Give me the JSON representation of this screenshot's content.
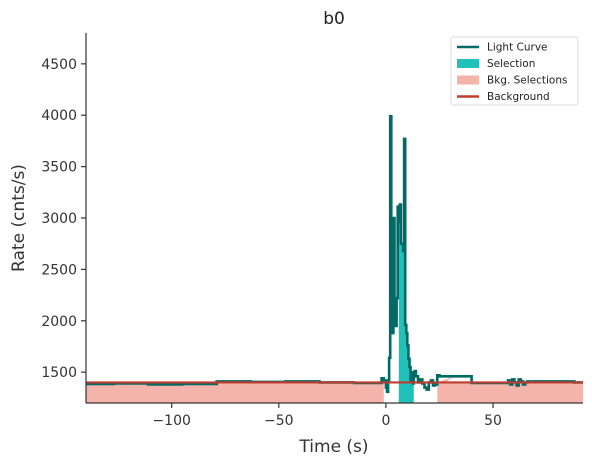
{
  "chart_data": {
    "type": "line",
    "title": "b0",
    "xlabel": "Time (s)",
    "ylabel": "Rate (cnts/s)",
    "xlim": [
      -140,
      92
    ],
    "ylim": [
      1200,
      4800
    ],
    "xticks": [
      -100,
      -50,
      0,
      50
    ],
    "xtick_labels": [
      "−100",
      "−50",
      "0",
      "50"
    ],
    "yticks": [
      1500,
      2000,
      2500,
      3000,
      3500,
      4000,
      4500
    ],
    "ytick_labels": [
      "1500",
      "2000",
      "2500",
      "3000",
      "3500",
      "4000",
      "4500"
    ],
    "grid": false,
    "legend": {
      "placement": "top-right",
      "entries": [
        {
          "label": "Light Curve",
          "kind": "line",
          "color": "#006a66"
        },
        {
          "label": "Selection",
          "kind": "patch",
          "color": "#20c1b8"
        },
        {
          "label": "Bkg. Selections",
          "kind": "patch",
          "color": "#f4b3ab"
        },
        {
          "label": "Background",
          "kind": "line",
          "color": "#c13c2e"
        }
      ]
    },
    "light_curve": {
      "name": "Light Curve",
      "color": "#006a66",
      "x": [
        -140,
        -128,
        -127,
        -112,
        -111,
        -96,
        -95,
        -80,
        -79,
        -64,
        -63,
        -48,
        -47,
        -32,
        -31,
        -16,
        -15,
        -3,
        -2,
        -1,
        0,
        0.5,
        1,
        1.5,
        2,
        2.5,
        3,
        3.5,
        4,
        4.5,
        5,
        5.5,
        6,
        6.5,
        7,
        7.5,
        8,
        8.5,
        9,
        9.5,
        10,
        10.5,
        11,
        11.5,
        12,
        12.5,
        13,
        13.5,
        14,
        15,
        16,
        17,
        18,
        19,
        20,
        21,
        22,
        23,
        24,
        25,
        40,
        56,
        57,
        58,
        59,
        60,
        61,
        62,
        63,
        64,
        65,
        66,
        72,
        88,
        92
      ],
      "y": [
        1385,
        1385,
        1390,
        1390,
        1380,
        1380,
        1385,
        1385,
        1410,
        1410,
        1405,
        1405,
        1410,
        1410,
        1400,
        1400,
        1395,
        1395,
        1440,
        1420,
        1350,
        1310,
        1420,
        1640,
        3990,
        2160,
        1880,
        3000,
        2140,
        1950,
        2220,
        3110,
        2960,
        3130,
        2750,
        2750,
        2680,
        3770,
        1960,
        1880,
        1760,
        1630,
        1550,
        1410,
        1500,
        1390,
        1460,
        1510,
        1460,
        1400,
        1430,
        1390,
        1350,
        1330,
        1400,
        1420,
        1370,
        1380,
        1470,
        1460,
        1395,
        1395,
        1420,
        1380,
        1430,
        1400,
        1370,
        1430,
        1410,
        1380,
        1400,
        1410,
        1410,
        1400,
        1400
      ]
    },
    "selection": {
      "name": "Selection",
      "color": "#20c1b8",
      "range": [
        6,
        13
      ]
    },
    "bkg_selections": {
      "name": "Bkg. Selections",
      "color": "#f4b3ab",
      "ranges": [
        [
          -140,
          -1
        ],
        [
          24,
          92
        ]
      ]
    },
    "background": {
      "name": "Background",
      "color": "#c13c2e",
      "x": [
        -140,
        92
      ],
      "y": [
        1400,
        1400
      ]
    }
  }
}
